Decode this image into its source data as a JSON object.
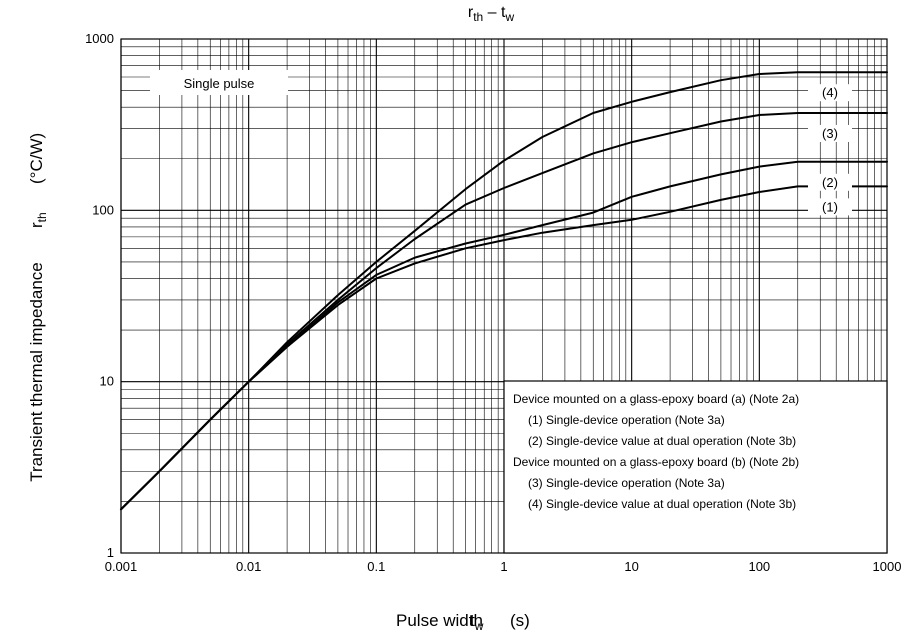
{
  "chart_data": {
    "type": "line",
    "title": "r",
    "title_sub": "th",
    "title_dash": " – t",
    "title_sub2": "w",
    "xlabel": "Pulse width",
    "xlabel_symbol": "t",
    "xlabel_symbol_sub": "w",
    "xlabel_unit": "(s)",
    "ylabel": "Transient thermal impedance",
    "ylabel_symbol": "r",
    "ylabel_symbol_sub": "th",
    "ylabel_unit": "(°C/W)",
    "xscale": "log",
    "yscale": "log",
    "xlim": [
      0.001,
      1000
    ],
    "ylim": [
      1,
      1000
    ],
    "grid": true,
    "x_ticks": [
      "0.001",
      "0.01",
      "0.1",
      "1",
      "10",
      "100",
      "1000"
    ],
    "y_ticks": [
      "1",
      "10",
      "100",
      "1000"
    ],
    "single_pulse_label": "Single pulse",
    "series": [
      {
        "name": "(1)",
        "x": [
          0.001,
          0.002,
          0.005,
          0.01,
          0.02,
          0.05,
          0.1,
          0.2,
          0.5,
          1,
          2,
          5,
          10,
          20,
          50,
          100,
          200,
          500,
          1000
        ],
        "y": [
          1.8,
          3.0,
          6.0,
          10.0,
          16.0,
          28.0,
          40.0,
          49.0,
          60.0,
          67.0,
          74.0,
          82.0,
          88.0,
          98.0,
          115.0,
          128.0,
          138.0,
          138.0,
          138.0
        ]
      },
      {
        "name": "(2)",
        "x": [
          0.001,
          0.002,
          0.005,
          0.01,
          0.02,
          0.05,
          0.1,
          0.2,
          0.5,
          1,
          2,
          5,
          10,
          20,
          50,
          100,
          200,
          500,
          1000
        ],
        "y": [
          1.8,
          3.0,
          6.0,
          10.0,
          16.0,
          29.0,
          42.0,
          53.0,
          64.0,
          72.0,
          82.0,
          97.0,
          120.0,
          138.0,
          162.0,
          180.0,
          192.0,
          192.0,
          192.0
        ]
      },
      {
        "name": "(3)",
        "x": [
          0.001,
          0.002,
          0.005,
          0.01,
          0.02,
          0.05,
          0.1,
          0.2,
          0.5,
          1,
          2,
          5,
          10,
          20,
          50,
          100,
          200,
          500,
          1000
        ],
        "y": [
          1.8,
          3.0,
          6.0,
          10.0,
          16.5,
          30.0,
          46.0,
          68.0,
          108.0,
          135.0,
          165.0,
          215.0,
          250.0,
          282.0,
          330.0,
          360.0,
          370.0,
          370.0,
          370.0
        ]
      },
      {
        "name": "(4)",
        "x": [
          0.001,
          0.002,
          0.005,
          0.01,
          0.02,
          0.05,
          0.1,
          0.2,
          0.5,
          1,
          2,
          5,
          10,
          20,
          50,
          100,
          200,
          500,
          1000
        ],
        "y": [
          1.8,
          3.0,
          6.0,
          10.0,
          17.0,
          32.0,
          50.0,
          76.0,
          133.0,
          195.0,
          268.0,
          370.0,
          430.0,
          490.0,
          575.0,
          625.0,
          640.0,
          640.0,
          640.0
        ]
      }
    ],
    "notes": [
      "Device mounted on a glass-epoxy board (a) (Note 2a)",
      "(1) Single-device operation (Note 3a)",
      "(2) Single-device value at dual operation (Note 3b)",
      "Device mounted on a glass-epoxy board (b) (Note 2b)",
      "(3) Single-device operation (Note 3a)",
      "(4) Single-device value at dual operation (Note 3b)"
    ]
  }
}
